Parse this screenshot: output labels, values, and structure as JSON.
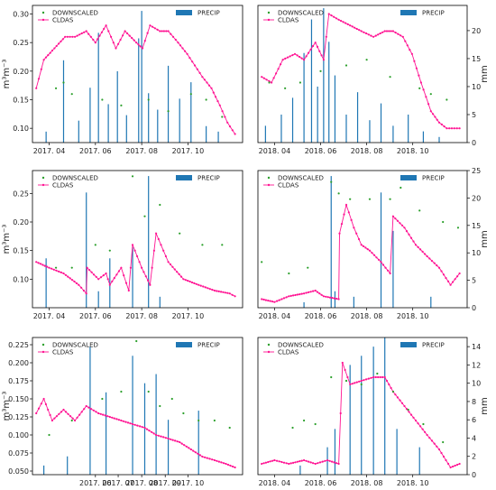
{
  "chart_data": [
    {
      "type": "line",
      "xlabel": "",
      "ylabel": "m³m⁻³",
      "y2label": "",
      "ylim": [
        0.075,
        0.315
      ],
      "y_ticks": [
        0.1,
        0.15,
        0.2,
        0.25,
        0.3
      ],
      "y_tick_labels": [
        "0.10",
        "0.15",
        "0.20",
        "0.25",
        "0.30"
      ],
      "y2lim": [
        0,
        25
      ],
      "y2_ticks": [],
      "y2_tick_labels": [],
      "xlim": [
        "2017-03-10",
        "2017-12-12"
      ],
      "x_ticks": [
        "2017-04-01",
        "2017-06-01",
        "2017-08-01",
        "2017-10-01"
      ],
      "x_tick_labels": [
        "2017. 04",
        "2017. 06",
        "2017. 08",
        "2017. 10"
      ],
      "legend_left": [
        "DOWNSCALED",
        "CLDAS"
      ],
      "legend_right": "PRECIP",
      "series": [
        {
          "name": "CLDAS",
          "x": [
            "2017-03-15",
            "2017-03-25",
            "2017-04-08",
            "2017-04-22",
            "2017-05-05",
            "2017-05-20",
            "2017-06-01",
            "2017-06-15",
            "2017-06-28",
            "2017-07-10",
            "2017-07-25",
            "2017-08-02",
            "2017-08-12",
            "2017-08-25",
            "2017-09-05",
            "2017-09-18",
            "2017-09-30",
            "2017-10-10",
            "2017-10-20",
            "2017-11-01",
            "2017-11-12",
            "2017-11-22",
            "2017-12-02"
          ],
          "y": [
            0.17,
            0.22,
            0.24,
            0.26,
            0.26,
            0.27,
            0.25,
            0.28,
            0.24,
            0.27,
            0.25,
            0.24,
            0.28,
            0.27,
            0.27,
            0.25,
            0.23,
            0.21,
            0.19,
            0.17,
            0.14,
            0.11,
            0.09
          ]
        },
        {
          "name": "DOWNSCALED",
          "x": [
            "2017-04-10",
            "2017-04-20",
            "2017-05-01",
            "2017-06-10",
            "2017-07-05",
            "2017-08-10",
            "2017-09-05",
            "2017-10-05",
            "2017-10-25",
            "2017-11-15"
          ],
          "y": [
            0.17,
            0.18,
            0.16,
            0.15,
            0.14,
            0.15,
            0.13,
            0.16,
            0.15,
            0.12
          ]
        },
        {
          "name": "PRECIP",
          "x": [
            "2017-03-28",
            "2017-04-20",
            "2017-05-10",
            "2017-05-25",
            "2017-06-05",
            "2017-06-18",
            "2017-06-30",
            "2017-07-12",
            "2017-07-28",
            "2017-08-01",
            "2017-08-10",
            "2017-08-22",
            "2017-09-05",
            "2017-09-20",
            "2017-10-05",
            "2017-10-25",
            "2017-11-10"
          ],
          "y": [
            2,
            15,
            4,
            10,
            20,
            7,
            13,
            5,
            19,
            24,
            9,
            6,
            14,
            8,
            11,
            3,
            2
          ]
        }
      ]
    },
    {
      "type": "line",
      "xlabel": "",
      "ylabel": "",
      "y2label": "mm",
      "ylim": [
        0.075,
        0.315
      ],
      "y_ticks": [],
      "y_tick_labels": [],
      "y2lim": [
        0,
        24.5
      ],
      "y2_ticks": [
        0,
        5,
        10,
        15,
        20
      ],
      "y2_tick_labels": [
        "0",
        "5",
        "10",
        "15",
        "20"
      ],
      "xlim": [
        "2018-03-10",
        "2018-12-12"
      ],
      "x_ticks": [
        "2018-04-01",
        "2018-06-01",
        "2018-08-01",
        "2018-10-01"
      ],
      "x_tick_labels": [
        "2018. 04",
        "2018. 06",
        "2018. 08",
        "2018. 10"
      ],
      "legend_left": [
        "DOWNSCALED",
        "CLDAS"
      ],
      "legend_right": "PRECIP",
      "series": [
        {
          "name": "CLDAS",
          "x": [
            "2018-03-15",
            "2018-03-28",
            "2018-04-12",
            "2018-04-28",
            "2018-05-10",
            "2018-05-25",
            "2018-06-05",
            "2018-06-12",
            "2018-06-25",
            "2018-07-10",
            "2018-07-25",
            "2018-08-10",
            "2018-08-25",
            "2018-09-05",
            "2018-09-18",
            "2018-09-30",
            "2018-10-12",
            "2018-10-25",
            "2018-11-05",
            "2018-11-15",
            "2018-11-25",
            "2018-12-02"
          ],
          "y": [
            0.19,
            0.18,
            0.22,
            0.23,
            0.22,
            0.25,
            0.22,
            0.3,
            0.29,
            0.28,
            0.27,
            0.26,
            0.27,
            0.27,
            0.26,
            0.23,
            0.18,
            0.13,
            0.11,
            0.1,
            0.1,
            0.1
          ]
        },
        {
          "name": "DOWNSCALED",
          "x": [
            "2018-03-25",
            "2018-04-15",
            "2018-05-05",
            "2018-06-01",
            "2018-07-05",
            "2018-08-01",
            "2018-09-01",
            "2018-10-10",
            "2018-10-25",
            "2018-11-15"
          ],
          "y": [
            0.18,
            0.17,
            0.18,
            0.2,
            0.21,
            0.22,
            0.19,
            0.17,
            0.16,
            0.15
          ]
        },
        {
          "name": "PRECIP",
          "x": [
            "2018-03-20",
            "2018-04-10",
            "2018-04-25",
            "2018-05-10",
            "2018-05-20",
            "2018-05-28",
            "2018-06-05",
            "2018-06-12",
            "2018-06-20",
            "2018-07-05",
            "2018-07-20",
            "2018-08-05",
            "2018-08-20",
            "2018-09-05",
            "2018-09-25",
            "2018-10-15",
            "2018-11-05"
          ],
          "y": [
            3,
            5,
            8,
            16,
            22,
            10,
            24,
            18,
            12,
            5,
            9,
            4,
            7,
            3,
            5,
            2,
            1
          ]
        }
      ]
    },
    {
      "type": "line",
      "xlabel": "",
      "ylabel": "m³m⁻³",
      "y2label": "",
      "ylim": [
        0.05,
        0.29
      ],
      "y_ticks": [
        0.1,
        0.15,
        0.2,
        0.25
      ],
      "y_tick_labels": [
        "0.10",
        "0.15",
        "0.20",
        "0.25"
      ],
      "y2lim": [
        0,
        25
      ],
      "y2_ticks": [],
      "y2_tick_labels": [],
      "xlim": [
        "2017-03-10",
        "2017-12-12"
      ],
      "x_ticks": [
        "2017-04-01",
        "2017-06-01",
        "2017-08-01",
        "2017-10-01"
      ],
      "x_tick_labels": [
        "2017. 04",
        "2017. 06",
        "2017. 08",
        "2017. 10"
      ],
      "legend_left": [
        "DOWNSCALED",
        "CLDAS"
      ],
      "legend_right": "PRECIP",
      "series": [
        {
          "name": "CLDAS",
          "x": [
            "2017-03-15",
            "2017-04-01",
            "2017-04-20",
            "2017-05-10",
            "2017-05-20",
            "2017-05-21",
            "2017-06-05",
            "2017-06-15",
            "2017-06-20",
            "2017-07-05",
            "2017-07-15",
            "2017-07-20",
            "2017-08-01",
            "2017-08-12",
            "2017-08-20",
            "2017-09-05",
            "2017-09-25",
            "2017-10-15",
            "2017-11-05",
            "2017-11-25",
            "2017-12-02"
          ],
          "y": [
            0.13,
            0.12,
            0.11,
            0.09,
            0.075,
            0.12,
            0.1,
            0.11,
            0.09,
            0.12,
            0.08,
            0.16,
            0.12,
            0.09,
            0.18,
            0.13,
            0.1,
            0.09,
            0.08,
            0.075,
            0.07
          ]
        },
        {
          "name": "DOWNSCALED",
          "x": [
            "2017-04-10",
            "2017-05-01",
            "2017-06-01",
            "2017-06-20",
            "2017-07-20",
            "2017-08-05",
            "2017-08-25",
            "2017-09-20",
            "2017-10-20",
            "2017-11-15"
          ],
          "y": [
            0.12,
            0.12,
            0.16,
            0.15,
            0.28,
            0.21,
            0.23,
            0.18,
            0.16,
            0.16
          ]
        },
        {
          "name": "PRECIP",
          "x": [
            "2017-03-28",
            "2017-05-20",
            "2017-06-05",
            "2017-06-20",
            "2017-07-20",
            "2017-08-10",
            "2017-08-25"
          ],
          "y": [
            9,
            21,
            3,
            9,
            11,
            24,
            2
          ]
        }
      ]
    },
    {
      "type": "line",
      "xlabel": "",
      "ylabel": "",
      "y2label": "mm",
      "ylim": [
        0.05,
        0.29
      ],
      "y_ticks": [],
      "y_tick_labels": [],
      "y2lim": [
        0,
        25
      ],
      "y2_ticks": [
        0,
        5,
        10,
        15,
        20,
        25
      ],
      "y2_tick_labels": [
        "0",
        "5",
        "10",
        "15",
        "20",
        "25"
      ],
      "xlim": [
        "2018-03-10",
        "2018-12-12"
      ],
      "x_ticks": [
        "2018-04-01",
        "2018-06-01",
        "2018-08-01",
        "2018-10-01"
      ],
      "x_tick_labels": [
        "2018. 04",
        "2018. 06",
        "2018. 08",
        "2018. 10"
      ],
      "legend_left": [
        "DOWNSCALED",
        "CLDAS"
      ],
      "legend_right": "PRECIP",
      "series": [
        {
          "name": "CLDAS",
          "x": [
            "2018-03-15",
            "2018-04-01",
            "2018-04-20",
            "2018-05-10",
            "2018-05-25",
            "2018-06-05",
            "2018-06-25",
            "2018-06-26",
            "2018-07-05",
            "2018-07-15",
            "2018-07-25",
            "2018-08-05",
            "2018-08-20",
            "2018-09-01",
            "2018-09-05",
            "2018-09-20",
            "2018-10-05",
            "2018-10-20",
            "2018-11-05",
            "2018-11-20",
            "2018-12-02"
          ],
          "y": [
            0.065,
            0.06,
            0.07,
            0.075,
            0.08,
            0.07,
            0.065,
            0.18,
            0.23,
            0.19,
            0.16,
            0.15,
            0.13,
            0.11,
            0.21,
            0.19,
            0.16,
            0.14,
            0.12,
            0.09,
            0.11
          ]
        },
        {
          "name": "DOWNSCALED",
          "x": [
            "2018-03-15",
            "2018-04-20",
            "2018-05-15",
            "2018-06-15",
            "2018-06-25",
            "2018-07-10",
            "2018-08-05",
            "2018-09-01",
            "2018-09-15",
            "2018-10-10",
            "2018-11-10",
            "2018-11-30"
          ],
          "y": [
            0.13,
            0.11,
            0.12,
            0.27,
            0.25,
            0.24,
            0.24,
            0.24,
            0.26,
            0.22,
            0.2,
            0.19
          ]
        },
        {
          "name": "PRECIP",
          "x": [
            "2018-05-10",
            "2018-06-15",
            "2018-06-20",
            "2018-07-15",
            "2018-08-20",
            "2018-09-05",
            "2018-10-25"
          ],
          "y": [
            1,
            24,
            3,
            2,
            21,
            14,
            2
          ]
        }
      ]
    },
    {
      "type": "line",
      "xlabel": "",
      "ylabel": "m³m⁻³",
      "y2label": "",
      "ylim": [
        0.045,
        0.235
      ],
      "y_ticks": [
        0.05,
        0.075,
        0.1,
        0.125,
        0.15,
        0.175,
        0.2,
        0.225
      ],
      "y_tick_labels": [
        "0.050",
        "0.075",
        "0.100",
        "0.125",
        "0.150",
        "0.175",
        "0.200",
        "0.225"
      ],
      "y2lim": [
        0,
        15
      ],
      "y2_ticks": [],
      "y2_tick_labels": [],
      "xlim": [
        "2017-03-10",
        "2017-12-12"
      ],
      "x_ticks": [
        "2017-06-01",
        "2017-07-01",
        "2017-08-01",
        "2017-09-01",
        "2017-10-01"
      ],
      "x_tick_labels": [
        "2017. 06",
        "2017. 07",
        "2017. 08",
        "2017. 09",
        "2017. 10"
      ],
      "legend_left": [
        "DOWNSCALED",
        "CLDAS"
      ],
      "legend_right": "PRECIP",
      "series": [
        {
          "name": "CLDAS",
          "x": [
            "2017-03-15",
            "2017-03-25",
            "2017-04-05",
            "2017-04-20",
            "2017-05-05",
            "2017-05-20",
            "2017-06-05",
            "2017-06-20",
            "2017-07-05",
            "2017-07-20",
            "2017-08-05",
            "2017-08-20",
            "2017-09-05",
            "2017-09-20",
            "2017-10-05",
            "2017-10-20",
            "2017-11-05",
            "2017-11-20",
            "2017-12-02"
          ],
          "y": [
            0.13,
            0.15,
            0.12,
            0.135,
            0.12,
            0.14,
            0.13,
            0.125,
            0.12,
            0.115,
            0.11,
            0.1,
            0.095,
            0.09,
            0.08,
            0.07,
            0.065,
            0.06,
            0.055
          ]
        },
        {
          "name": "DOWNSCALED",
          "x": [
            "2017-04-01",
            "2017-05-01",
            "2017-06-10",
            "2017-07-05",
            "2017-07-25",
            "2017-08-10",
            "2017-08-25",
            "2017-09-10",
            "2017-09-25",
            "2017-10-15",
            "2017-11-05",
            "2017-11-25"
          ],
          "y": [
            0.1,
            0.12,
            0.15,
            0.16,
            0.23,
            0.16,
            0.14,
            0.15,
            0.13,
            0.12,
            0.12,
            0.11
          ]
        },
        {
          "name": "PRECIP",
          "x": [
            "2017-03-25",
            "2017-04-25",
            "2017-05-25",
            "2017-06-15",
            "2017-07-20",
            "2017-08-05",
            "2017-08-20",
            "2017-09-05",
            "2017-10-15"
          ],
          "y": [
            1,
            2,
            14,
            9,
            13,
            10,
            11,
            6,
            7
          ]
        }
      ]
    },
    {
      "type": "line",
      "xlabel": "",
      "ylabel": "",
      "y2label": "mm",
      "ylim": [
        0.045,
        0.235
      ],
      "y_ticks": [],
      "y_tick_labels": [],
      "y2lim": [
        0,
        15
      ],
      "y2_ticks": [
        0,
        2,
        4,
        6,
        8,
        10,
        12,
        14
      ],
      "y2_tick_labels": [
        "0",
        "2",
        "4",
        "6",
        "8",
        "10",
        "12",
        "14"
      ],
      "xlim": [
        "2018-03-10",
        "2018-12-12"
      ],
      "x_ticks": [
        "2018-04-01",
        "2018-06-01",
        "2018-08-01",
        "2018-10-01"
      ],
      "x_tick_labels": [
        "2018. 04",
        "2018. 06",
        "2018. 08",
        "2018. 10"
      ],
      "legend_left": [
        "DOWNSCALED",
        "CLDAS"
      ],
      "legend_right": "PRECIP",
      "series": [
        {
          "name": "CLDAS",
          "x": [
            "2018-03-15",
            "2018-04-01",
            "2018-04-20",
            "2018-05-10",
            "2018-05-25",
            "2018-06-10",
            "2018-06-25",
            "2018-06-30",
            "2018-07-10",
            "2018-07-25",
            "2018-08-10",
            "2018-08-25",
            "2018-09-05",
            "2018-09-20",
            "2018-10-05",
            "2018-10-20",
            "2018-11-05",
            "2018-11-20",
            "2018-12-02"
          ],
          "y": [
            0.06,
            0.065,
            0.06,
            0.065,
            0.06,
            0.065,
            0.06,
            0.2,
            0.17,
            0.175,
            0.18,
            0.18,
            0.16,
            0.14,
            0.12,
            0.1,
            0.08,
            0.055,
            0.06
          ]
        },
        {
          "name": "DOWNSCALED",
          "x": [
            "2018-04-25",
            "2018-05-10",
            "2018-05-25",
            "2018-06-15",
            "2018-07-05",
            "2018-07-25",
            "2018-08-15",
            "2018-09-05",
            "2018-09-25",
            "2018-10-15",
            "2018-11-10"
          ],
          "y": [
            0.11,
            0.12,
            0.115,
            0.18,
            0.175,
            0.17,
            0.185,
            0.16,
            0.135,
            0.115,
            0.09
          ]
        },
        {
          "name": "PRECIP",
          "x": [
            "2018-05-05",
            "2018-06-10",
            "2018-06-20",
            "2018-07-10",
            "2018-07-25",
            "2018-08-10",
            "2018-08-25",
            "2018-09-10",
            "2018-10-10"
          ],
          "y": [
            1,
            3,
            5,
            12,
            13,
            14,
            15,
            5,
            3
          ]
        }
      ]
    }
  ],
  "colors": {
    "cldas": "#ff1493",
    "downscaled": "#2ca02c",
    "precip": "#1f77b4",
    "axis": "#000000",
    "tick_text": "#222222"
  }
}
